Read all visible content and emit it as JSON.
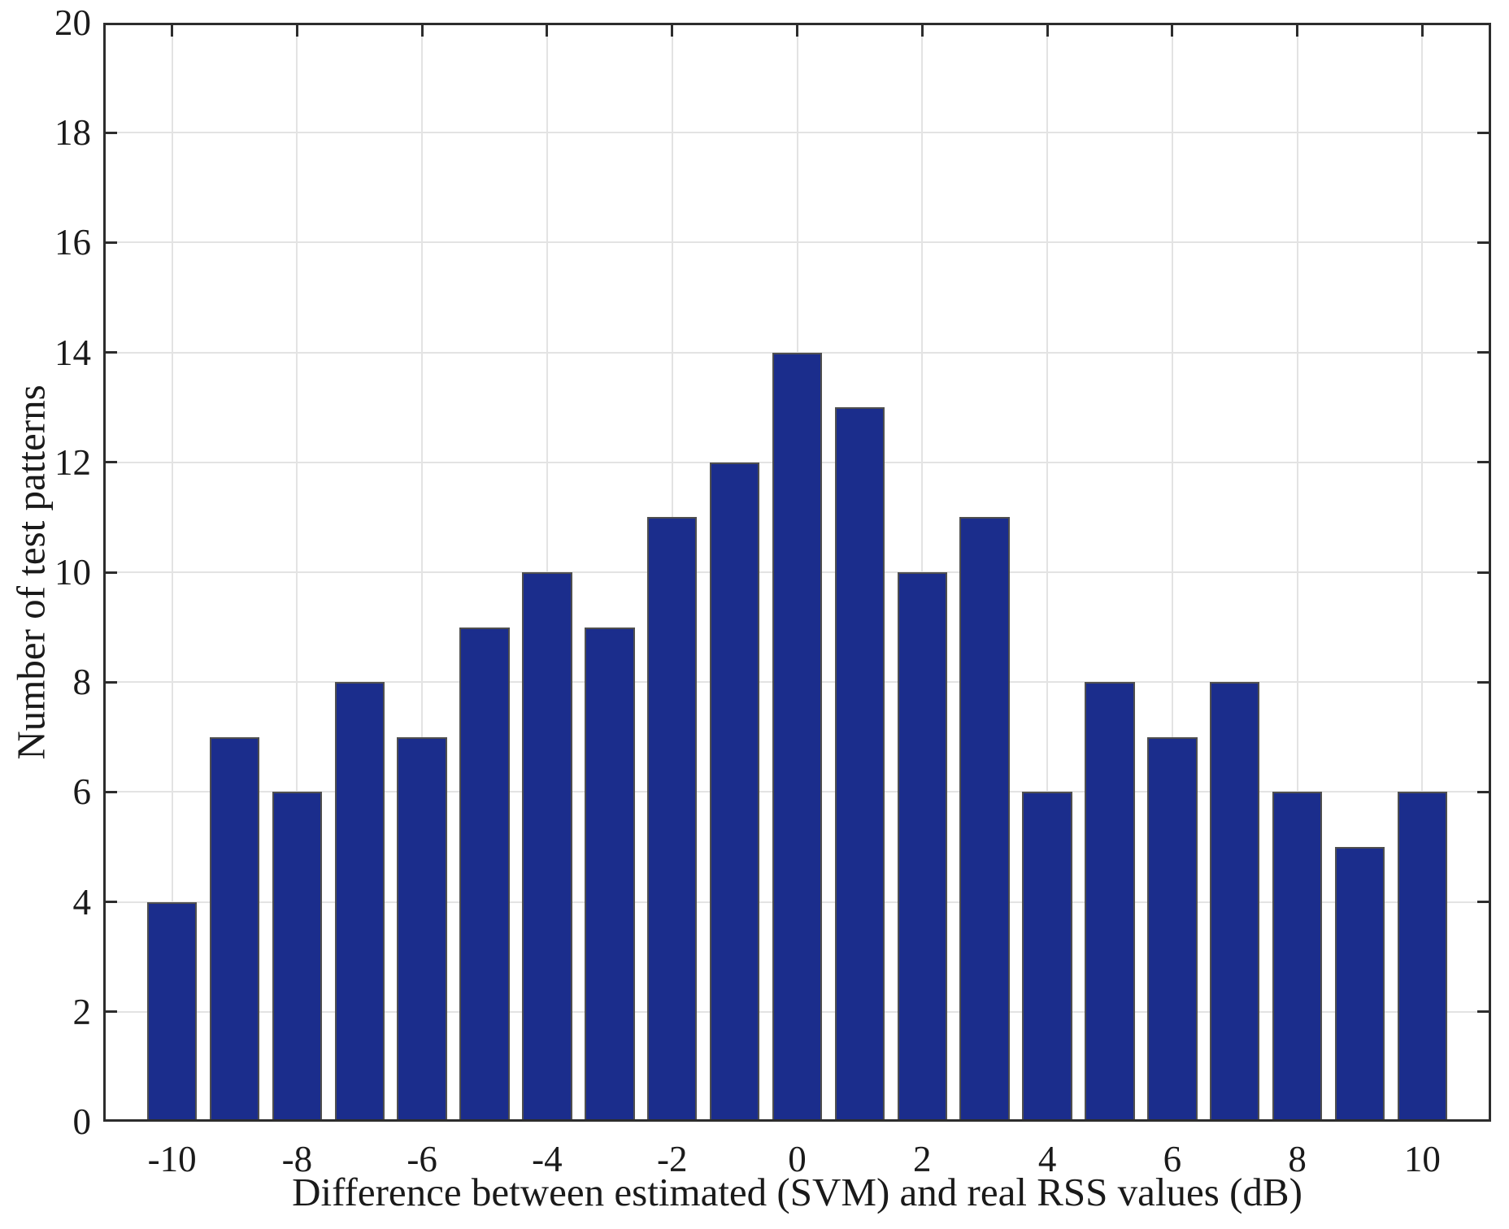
{
  "chart_data": {
    "type": "bar",
    "title": "",
    "xlabel": "Difference between estimated (SVM) and real RSS values (dB)",
    "ylabel": "Number of test patterns",
    "categories": [
      -10,
      -9,
      -8,
      -7,
      -6,
      -5,
      -4,
      -3,
      -2,
      -1,
      0,
      1,
      2,
      3,
      4,
      5,
      6,
      7,
      8,
      9,
      10
    ],
    "values": [
      4,
      7,
      6,
      8,
      7,
      9,
      10,
      9,
      11,
      12,
      14,
      13,
      10,
      11,
      6,
      8,
      7,
      8,
      6,
      5,
      6
    ],
    "x_ticks": [
      -10,
      -8,
      -6,
      -4,
      -2,
      0,
      2,
      4,
      6,
      8,
      10
    ],
    "y_ticks": [
      0,
      2,
      4,
      6,
      8,
      10,
      12,
      14,
      16,
      18,
      20
    ],
    "xlim": [
      -11.1,
      11.1
    ],
    "ylim": [
      0,
      20
    ],
    "grid": true,
    "legend": "none",
    "bar_width_ratio": 0.8,
    "colors": {
      "bar_fill": "#1b2d8c",
      "bar_edge": "#4f4f4f",
      "grid": "#e3e3e3",
      "axis": "#2d2d2d",
      "text": "#1a1a1a",
      "background": "#ffffff"
    }
  }
}
